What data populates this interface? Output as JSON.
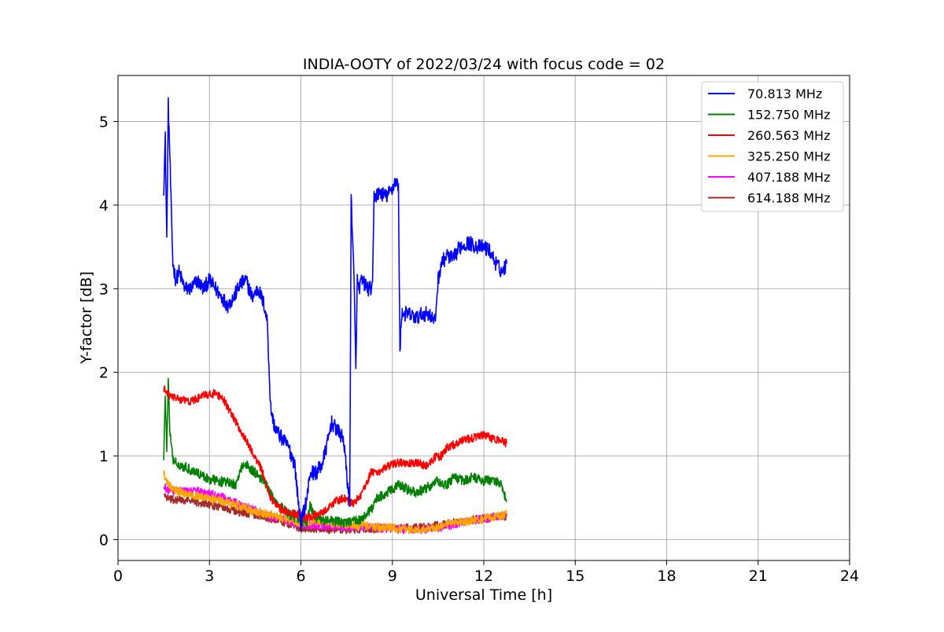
{
  "chart_data": {
    "type": "line",
    "title": "INDIA-OOTY of 2022/03/24 with focus code = 02",
    "xlabel": "Universal Time [h]",
    "ylabel": "Y-factor [dB]",
    "xlim": [
      0,
      24
    ],
    "ylim": [
      -0.25,
      5.55
    ],
    "xticks": [
      0,
      3,
      6,
      9,
      12,
      15,
      18,
      21,
      24
    ],
    "yticks": [
      0,
      1,
      2,
      3,
      4,
      5
    ],
    "grid": true,
    "legend_position": "top-right",
    "series": [
      {
        "name": "  70.813 MHz",
        "color": "#0000ff",
        "x": [
          1.5,
          1.55,
          1.6,
          1.65,
          1.7,
          1.75,
          1.8,
          1.9,
          2.0,
          2.2,
          2.4,
          2.6,
          2.8,
          3.0,
          3.2,
          3.4,
          3.6,
          3.8,
          4.0,
          4.2,
          4.4,
          4.6,
          4.8,
          4.9,
          4.95,
          5.0,
          5.1,
          5.2,
          5.4,
          5.6,
          5.8,
          5.9,
          6.0,
          6.2,
          6.3,
          6.5,
          6.7,
          6.9,
          7.0,
          7.2,
          7.4,
          7.6,
          7.65,
          7.7,
          7.75,
          7.8,
          7.85,
          7.9,
          8.0,
          8.2,
          8.35,
          8.4,
          8.6,
          8.8,
          9.0,
          9.1,
          9.2,
          9.25,
          9.3,
          9.5,
          9.8,
          10.0,
          10.2,
          10.4,
          10.5,
          10.6,
          10.8,
          11.0,
          11.2,
          11.5,
          11.8,
          12.0,
          12.2,
          12.4,
          12.6,
          12.75
        ],
        "y": [
          4.2,
          4.8,
          3.6,
          5.2,
          4.6,
          3.9,
          3.3,
          3.1,
          3.2,
          3.0,
          3.0,
          3.1,
          3.0,
          3.1,
          3.0,
          2.9,
          2.8,
          2.9,
          3.05,
          3.1,
          2.9,
          3.0,
          2.8,
          2.6,
          2.1,
          1.6,
          1.4,
          1.3,
          1.2,
          1.1,
          0.9,
          0.5,
          0.2,
          0.5,
          0.8,
          0.8,
          0.9,
          1.2,
          1.4,
          1.3,
          1.2,
          0.4,
          4.1,
          3.6,
          3.0,
          2.0,
          3.1,
          3.0,
          3.1,
          3.0,
          3.0,
          4.1,
          4.15,
          4.1,
          4.2,
          4.3,
          4.2,
          2.2,
          2.7,
          2.7,
          2.65,
          2.7,
          2.7,
          2.6,
          3.1,
          3.3,
          3.4,
          3.35,
          3.5,
          3.55,
          3.5,
          3.5,
          3.45,
          3.3,
          3.2,
          3.3
        ]
      },
      {
        "name": "152.750 MHz",
        "color": "#008000",
        "x": [
          1.5,
          1.55,
          1.6,
          1.65,
          1.7,
          1.8,
          2.0,
          2.3,
          2.6,
          3.0,
          3.3,
          3.6,
          3.9,
          4.0,
          4.2,
          4.5,
          4.8,
          5.0,
          5.3,
          5.6,
          5.9,
          6.0,
          6.2,
          6.3,
          6.5,
          7.0,
          7.5,
          8.0,
          8.3,
          8.5,
          8.8,
          9.0,
          9.2,
          9.5,
          9.8,
          10.0,
          10.3,
          10.5,
          10.8,
          11.0,
          11.3,
          11.6,
          12.0,
          12.3,
          12.6,
          12.75
        ],
        "y": [
          1.0,
          1.7,
          1.1,
          1.9,
          1.3,
          0.95,
          0.9,
          0.85,
          0.8,
          0.72,
          0.7,
          0.68,
          0.65,
          0.85,
          0.9,
          0.8,
          0.7,
          0.55,
          0.4,
          0.3,
          0.25,
          0.22,
          0.2,
          0.4,
          0.25,
          0.22,
          0.2,
          0.25,
          0.35,
          0.5,
          0.55,
          0.6,
          0.65,
          0.6,
          0.55,
          0.6,
          0.65,
          0.7,
          0.65,
          0.75,
          0.7,
          0.75,
          0.7,
          0.72,
          0.65,
          0.45
        ]
      },
      {
        "name": "260.563 MHz",
        "color": "#ff0000",
        "x": [
          1.5,
          1.7,
          2.0,
          2.4,
          2.8,
          3.2,
          3.5,
          3.8,
          4.1,
          4.4,
          4.7,
          5.0,
          5.3,
          5.6,
          5.9,
          6.2,
          6.5,
          6.8,
          7.1,
          7.4,
          7.7,
          8.0,
          8.3,
          8.6,
          8.9,
          9.2,
          9.5,
          9.8,
          10.1,
          10.4,
          10.6,
          10.8,
          11.1,
          11.4,
          11.7,
          12.0,
          12.3,
          12.6,
          12.75
        ],
        "y": [
          1.8,
          1.72,
          1.68,
          1.65,
          1.72,
          1.75,
          1.65,
          1.45,
          1.25,
          1.05,
          0.85,
          0.5,
          0.38,
          0.32,
          0.3,
          0.25,
          0.3,
          0.35,
          0.45,
          0.5,
          0.42,
          0.55,
          0.8,
          0.82,
          0.88,
          0.92,
          0.9,
          0.92,
          0.88,
          0.98,
          1.0,
          1.1,
          1.15,
          1.2,
          1.22,
          1.25,
          1.2,
          1.18,
          1.15
        ]
      },
      {
        "name": "325.250 MHz",
        "color": "#ffa500",
        "x": [
          1.5,
          1.6,
          1.8,
          2.2,
          2.6,
          3.0,
          3.5,
          4.0,
          4.5,
          5.0,
          5.5,
          6.0,
          6.5,
          7.0,
          7.5,
          8.0,
          8.5,
          9.0,
          9.5,
          10.0,
          10.5,
          11.0,
          11.5,
          12.0,
          12.5,
          12.75
        ],
        "y": [
          0.8,
          0.7,
          0.6,
          0.55,
          0.52,
          0.5,
          0.45,
          0.4,
          0.33,
          0.3,
          0.25,
          0.2,
          0.22,
          0.2,
          0.18,
          0.17,
          0.15,
          0.14,
          0.12,
          0.12,
          0.15,
          0.2,
          0.22,
          0.25,
          0.28,
          0.3
        ]
      },
      {
        "name": "407.188 MHz",
        "color": "#ff00ff",
        "x": [
          1.5,
          1.6,
          1.8,
          2.2,
          2.6,
          3.0,
          3.5,
          4.0,
          4.5,
          5.0,
          5.5,
          6.0,
          6.5,
          7.0,
          7.5,
          8.0,
          8.5,
          9.0,
          9.5,
          10.0,
          10.5,
          11.0,
          11.5,
          12.0,
          12.5,
          12.75
        ],
        "y": [
          0.65,
          0.6,
          0.58,
          0.58,
          0.58,
          0.55,
          0.5,
          0.42,
          0.35,
          0.28,
          0.23,
          0.18,
          0.17,
          0.16,
          0.15,
          0.15,
          0.14,
          0.13,
          0.12,
          0.12,
          0.14,
          0.18,
          0.22,
          0.25,
          0.28,
          0.3
        ]
      },
      {
        "name": "614.188 MHz",
        "color": "#a52a2a",
        "x": [
          1.5,
          1.6,
          1.8,
          2.2,
          2.6,
          3.0,
          3.5,
          4.0,
          4.5,
          5.0,
          5.5,
          6.0,
          6.5,
          7.0,
          7.5,
          8.0,
          8.5,
          9.0,
          9.5,
          10.0,
          10.5,
          11.0,
          11.5,
          12.0,
          12.5,
          12.75
        ],
        "y": [
          0.55,
          0.5,
          0.48,
          0.47,
          0.45,
          0.42,
          0.38,
          0.33,
          0.3,
          0.25,
          0.2,
          0.14,
          0.13,
          0.12,
          0.12,
          0.13,
          0.13,
          0.14,
          0.14,
          0.15,
          0.17,
          0.2,
          0.23,
          0.25,
          0.27,
          0.28
        ]
      }
    ]
  }
}
